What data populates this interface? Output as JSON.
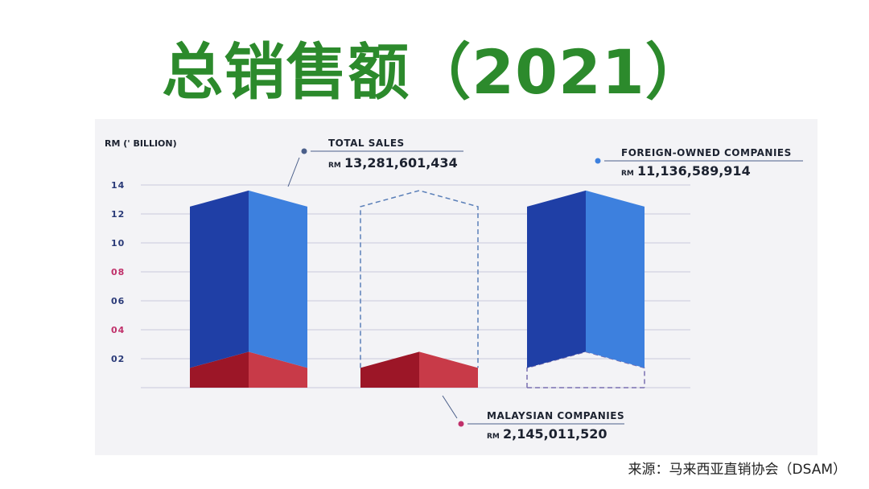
{
  "title": "总销售额（2021）",
  "source": "来源：马来西亚直销协会（DSAM）",
  "colors": {
    "title": "#2c8a2c",
    "blue_dark": "#1f3fa6",
    "blue_light": "#3d80de",
    "red_dark": "#9c1627",
    "red_light": "#c83a48",
    "tick_blue": "#2a3a78",
    "tick_pink": "#c0306a",
    "text": "#1c2230"
  },
  "chart_data": {
    "type": "bar",
    "ylabel": "RM (' BILLION)",
    "yticks": [
      "14",
      "12",
      "10",
      "08",
      "06",
      "04",
      "02"
    ],
    "ylim": [
      0,
      14
    ],
    "grid": true,
    "categories": [
      "TOTAL SALES",
      "MALAYSIAN COMPANIES",
      "FOREIGN-OWNED COMPANIES"
    ],
    "values": [
      13.281601434,
      2.14501152,
      11.136589914
    ],
    "series": [
      {
        "name": "MALAYSIAN COMPANIES",
        "values": [
          2.14501152,
          2.14501152,
          0
        ]
      },
      {
        "name": "FOREIGN-OWNED COMPANIES",
        "values": [
          11.136589914,
          0,
          11.136589914
        ]
      }
    ],
    "annotations": [
      {
        "label": "TOTAL SALES",
        "prefix": "RM",
        "value": "13,281,601,434"
      },
      {
        "label": "MALAYSIAN COMPANIES",
        "prefix": "RM",
        "value": "2,145,011,520"
      },
      {
        "label": "FOREIGN-OWNED COMPANIES",
        "prefix": "RM",
        "value": "11,136,589,914"
      }
    ]
  }
}
